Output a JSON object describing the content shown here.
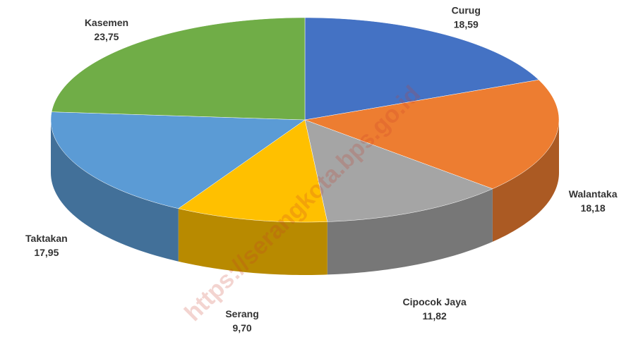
{
  "chart_data": {
    "type": "pie3d",
    "categories": [
      "Curug",
      "Walantaka",
      "Cipocok Jaya",
      "Serang",
      "Taktakan",
      "Kasemen"
    ],
    "values": [
      18.59,
      18.18,
      11.82,
      9.7,
      17.95,
      23.75
    ],
    "value_labels": [
      "18,59",
      "18,18",
      "11,82",
      "9,70",
      "17,95",
      "23,75"
    ],
    "colors": [
      "#4472c4",
      "#ed7d31",
      "#a5a5a5",
      "#ffc000",
      "#5b9bd5",
      "#70ad47"
    ],
    "watermark": "https://serangkota.bps.go.id"
  }
}
